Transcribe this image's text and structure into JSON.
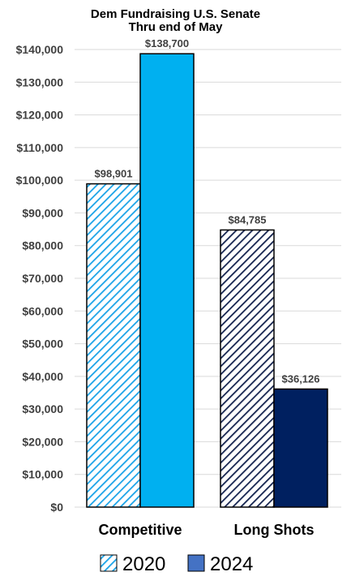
{
  "chart_data": {
    "type": "bar",
    "title": "Dem Fundraising U.S. Senate",
    "subtitle": "Thru end of May",
    "categories": [
      "Competitive",
      "Long Shots"
    ],
    "series": [
      {
        "name": "2020",
        "values": [
          98901,
          84785
        ],
        "data_labels": [
          "$98,901",
          "$84,785"
        ],
        "fill": "hatched",
        "colors": [
          "#1AA3E8",
          "#14234F"
        ]
      },
      {
        "name": "2024",
        "values": [
          138700,
          36126
        ],
        "data_labels": [
          "$138,700",
          "$36,126"
        ],
        "fill": "solid",
        "colors": [
          "#00B0F0",
          "#002060"
        ]
      }
    ],
    "ylim": [
      0,
      140000
    ],
    "yticks": [
      0,
      10000,
      20000,
      30000,
      40000,
      50000,
      60000,
      70000,
      80000,
      90000,
      100000,
      110000,
      120000,
      130000,
      140000
    ],
    "ytick_labels": [
      "$0",
      "$10,000",
      "$20,000",
      "$30,000",
      "$40,000",
      "$50,000",
      "$60,000",
      "$70,000",
      "$80,000",
      "$90,000",
      "$100,000",
      "$110,000",
      "$120,000",
      "$130,000",
      "$140,000"
    ],
    "xlabel": "",
    "ylabel": "",
    "grid": true,
    "legend_position": "bottom",
    "legend_colors": [
      "#1AA3E8",
      "#4472C4"
    ]
  }
}
